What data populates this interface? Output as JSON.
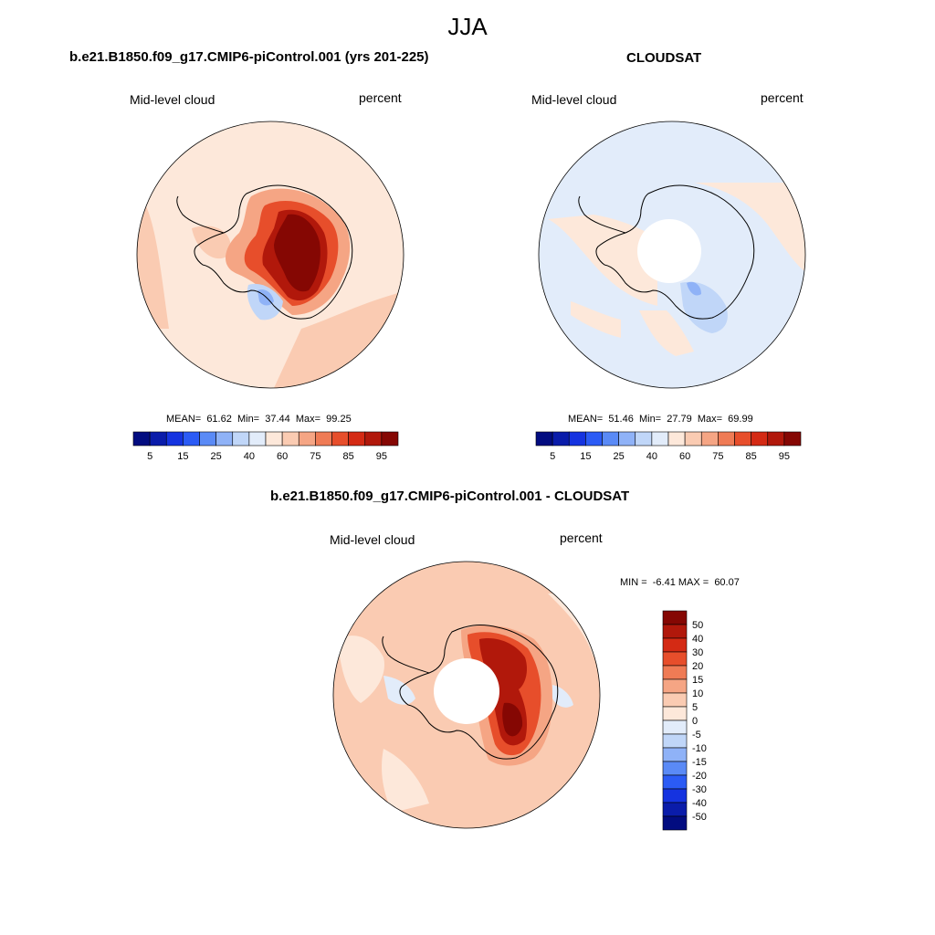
{
  "figure": {
    "title": "JJA",
    "panels": [
      {
        "title": "b.e21.B1850.f09_g17.CMIP6-piControl.001 (yrs 201-225)",
        "left_label": "Mid-level cloud",
        "right_label": "percent",
        "stats_text": "MEAN=  61.62  Min=  37.44  Max=  99.25",
        "colorbar": {
          "colors": [
            "#020C80",
            "#0A1CAA",
            "#1533E0",
            "#2B5BF5",
            "#5A8AF6",
            "#8FB2F7",
            "#C0D6F8",
            "#E2ECFA",
            "#FDE8DA",
            "#FACBB2",
            "#F5A584",
            "#EF7B55",
            "#E74E2B",
            "#D42A14",
            "#B1180B",
            "#850703"
          ],
          "tick_labels": [
            "5",
            "15",
            "25",
            "40",
            "60",
            "75",
            "85",
            "95"
          ]
        }
      },
      {
        "title": "CLOUDSAT",
        "left_label": "Mid-level cloud",
        "right_label": "percent",
        "stats_text": "MEAN=  51.46  Min=  27.79  Max=  69.99",
        "colorbar": {
          "colors": [
            "#020C80",
            "#0A1CAA",
            "#1533E0",
            "#2B5BF5",
            "#5A8AF6",
            "#8FB2F7",
            "#C0D6F8",
            "#E2ECFA",
            "#FDE8DA",
            "#FACBB2",
            "#F5A584",
            "#EF7B55",
            "#E74E2B",
            "#D42A14",
            "#B1180B",
            "#850703"
          ],
          "tick_labels": [
            "5",
            "15",
            "25",
            "40",
            "60",
            "75",
            "85",
            "95"
          ]
        }
      },
      {
        "title": "b.e21.B1850.f09_g17.CMIP6-piControl.001 - CLOUDSAT",
        "left_label": "Mid-level cloud",
        "right_label": "percent",
        "stats_text": "MIN =  -6.41 MAX =  60.07",
        "colorbar": {
          "colors": [
            "#850703",
            "#B1180B",
            "#D42A14",
            "#E74E2B",
            "#EF7B55",
            "#F5A584",
            "#FACBB2",
            "#FDE8DA",
            "#E2ECFA",
            "#C0D6F8",
            "#8FB2F7",
            "#5A8AF6",
            "#2B5BF5",
            "#1533E0",
            "#0A1CAA",
            "#020C80"
          ],
          "tick_labels": [
            "50",
            "40",
            "30",
            "20",
            "15",
            "10",
            "5",
            "0",
            "-5",
            "-10",
            "-15",
            "-20",
            "-30",
            "-40",
            "-50"
          ]
        }
      }
    ]
  }
}
